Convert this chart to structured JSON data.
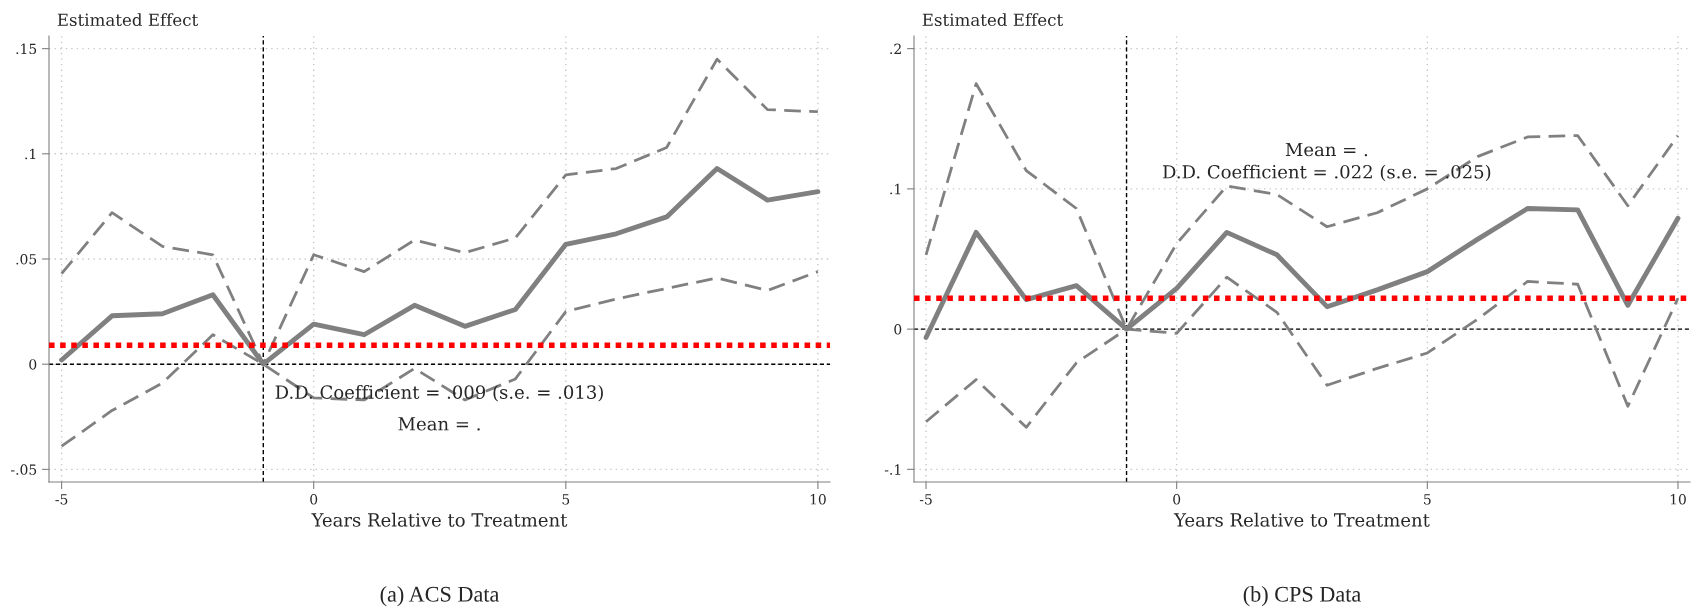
{
  "chart_data": [
    {
      "type": "line",
      "title": "(a) ACS Data",
      "xlabel": "Years Relative to Treatment",
      "ylabel": "Estimated Effect",
      "x": [
        -5,
        -4,
        -3,
        -2,
        -1,
        0,
        1,
        2,
        3,
        4,
        5,
        6,
        7,
        8,
        9,
        10
      ],
      "series": [
        {
          "color": "#808080",
          "line_style": "solid",
          "values": [
            0.002,
            0.023,
            0.024,
            0.033,
            0,
            0.019,
            0.014,
            0.028,
            0.018,
            0.026,
            0.057,
            0.062,
            0.07,
            0.093,
            0.078,
            0.082
          ]
        },
        {
          "color": "#808080",
          "line_style": "dashed",
          "values": [
            0.043,
            0.072,
            0.056,
            0.052,
            0,
            0.052,
            0.044,
            0.059,
            0.053,
            0.06,
            0.09,
            0.093,
            0.103,
            0.145,
            0.121,
            0.12
          ]
        },
        {
          "color": "#808080",
          "line_style": "dashed",
          "values": [
            -0.039,
            -0.022,
            -0.009,
            0.014,
            0,
            -0.016,
            -0.017,
            -0.002,
            -0.017,
            -0.007,
            0.025,
            0.031,
            0.036,
            0.041,
            0.035,
            0.044
          ]
        }
      ],
      "ref_lines": [
        {
          "axis": "y",
          "value": 0,
          "color": "#000000",
          "line_style": "dashed"
        },
        {
          "axis": "x",
          "value": -1,
          "color": "#000000",
          "line_style": "dashed"
        },
        {
          "axis": "y",
          "value": 0.009,
          "color": "#ff0000",
          "line_style": "dotted"
        }
      ],
      "annotations": [
        "D.D. Coefficient = .009 (s.e. = .013)",
        "Mean = ."
      ],
      "xlim": [
        -5.25,
        10.24
      ],
      "xticks": [
        -5,
        0,
        5,
        10
      ],
      "ylim": [
        -0.056,
        0.156
      ],
      "yticks": [
        {
          "value": -0.05,
          "label": "-.05"
        },
        {
          "value": 0,
          "label": "0"
        },
        {
          "value": 0.05,
          "label": ".05"
        },
        {
          "value": 0.1,
          "label": ".1"
        },
        {
          "value": 0.15,
          "label": ".15"
        }
      ],
      "grid": true
    },
    {
      "type": "line",
      "title": "(b) CPS Data",
      "xlabel": "Years Relative to Treatment",
      "ylabel": "Estimated Effect",
      "x": [
        -5,
        -4,
        -3,
        -2,
        -1,
        0,
        1,
        2,
        3,
        4,
        5,
        6,
        7,
        8,
        9,
        10
      ],
      "series": [
        {
          "color": "#808080",
          "line_style": "solid",
          "values": [
            -0.006,
            0.069,
            0.021,
            0.031,
            0,
            0.029,
            0.069,
            0.053,
            0.016,
            0.028,
            0.041,
            0.064,
            0.086,
            0.085,
            0.017,
            0.079
          ]
        },
        {
          "color": "#808080",
          "line_style": "dashed",
          "values": [
            0.053,
            0.175,
            0.113,
            0.086,
            0,
            0.061,
            0.102,
            0.096,
            0.073,
            0.083,
            0.1,
            0.123,
            0.137,
            0.138,
            0.088,
            0.138
          ]
        },
        {
          "color": "#808080",
          "line_style": "dashed",
          "values": [
            -0.066,
            -0.036,
            -0.07,
            -0.024,
            0,
            -0.003,
            0.037,
            0.012,
            -0.04,
            -0.028,
            -0.017,
            0.007,
            0.034,
            0.032,
            -0.055,
            0.022
          ]
        }
      ],
      "ref_lines": [
        {
          "axis": "y",
          "value": 0,
          "color": "#000000",
          "line_style": "dashed"
        },
        {
          "axis": "x",
          "value": -1,
          "color": "#000000",
          "line_style": "dashed"
        },
        {
          "axis": "y",
          "value": 0.022,
          "color": "#ff0000",
          "line_style": "dotted"
        }
      ],
      "annotations": [
        "Mean = .",
        "D.D. Coefficient = .022 (s.e. = .025)"
      ],
      "xlim": [
        -5.24,
        10.24
      ],
      "xticks": [
        -5,
        0,
        5,
        10
      ],
      "ylim": [
        -0.109,
        0.209
      ],
      "yticks": [
        {
          "value": -0.1,
          "label": "-.1"
        },
        {
          "value": 0,
          "label": "0"
        },
        {
          "value": 0.1,
          "label": ".1"
        },
        {
          "value": 0.2,
          "label": ".2"
        }
      ],
      "grid": true
    }
  ]
}
